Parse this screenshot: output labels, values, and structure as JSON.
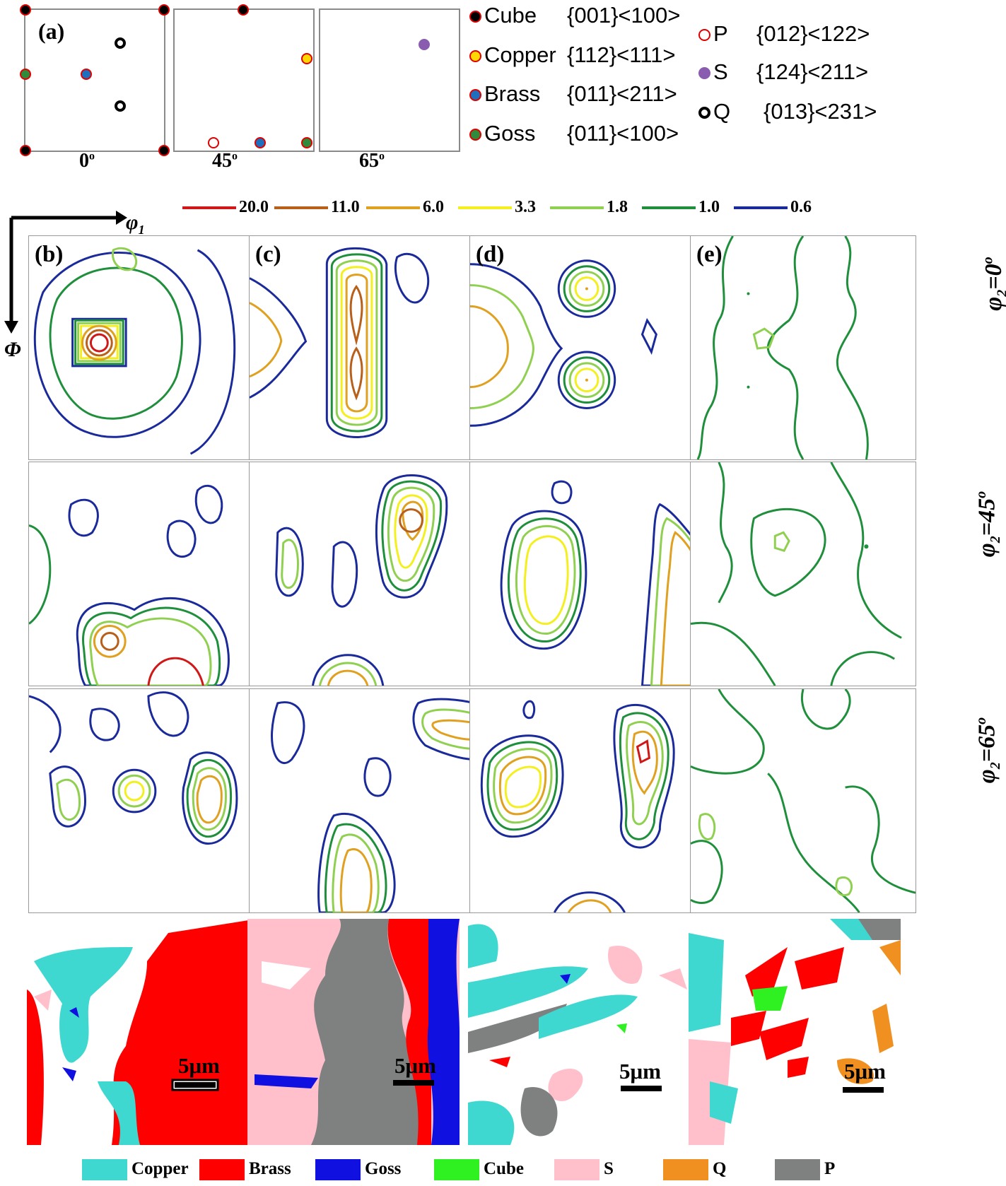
{
  "panel_a": {
    "label": "(a)",
    "angle_labels": [
      "0",
      "45",
      "65"
    ],
    "degree_mark": "o"
  },
  "texture_legend": {
    "left": [
      {
        "name": "Cube",
        "indices": "{001}<100>",
        "fill": "#000000"
      },
      {
        "name": "Copper",
        "indices": "{112}<111>",
        "fill": "#ffd700"
      },
      {
        "name": "Brass",
        "indices": "{011}<211>",
        "fill": "#1f6fbf"
      },
      {
        "name": "Goss",
        "indices": "{011}<100>",
        "fill": "#2e8b3c"
      }
    ],
    "right": [
      {
        "name": "P",
        "indices": "{012}<122>"
      },
      {
        "name": "S",
        "indices": "{124}<211>"
      },
      {
        "name": "Q",
        "indices": "{013}<231>"
      }
    ]
  },
  "contour_levels": [
    {
      "value": "20.0",
      "color": "#d01818"
    },
    {
      "value": "11.0",
      "color": "#b8601a"
    },
    {
      "value": "6.0",
      "color": "#e0a020"
    },
    {
      "value": "3.3",
      "color": "#f4f020"
    },
    {
      "value": "1.8",
      "color": "#90d050"
    },
    {
      "value": "1.0",
      "color": "#1f8f3c"
    },
    {
      "value": "0.6",
      "color": "#1a2a9a"
    }
  ],
  "axes": {
    "phi1": "φ",
    "phi1_sub": "1",
    "Phi": "Φ"
  },
  "panel_labels": [
    "(b)",
    "(c)",
    "(d)",
    "(e)"
  ],
  "row_labels": [
    {
      "prefix": "φ",
      "sub": "2",
      "value": "=0",
      "sup": "o"
    },
    {
      "prefix": "φ",
      "sub": "2",
      "value": "=45",
      "sup": "o"
    },
    {
      "prefix": "φ",
      "sub": "2",
      "value": "=65",
      "sup": "o"
    }
  ],
  "scale_bar": "5μm",
  "bottom_legend": [
    {
      "name": "Copper",
      "color": "#3fd8d0"
    },
    {
      "name": "Brass",
      "color": "#ff0000"
    },
    {
      "name": "Goss",
      "color": "#1010e0"
    },
    {
      "name": "Cube",
      "color": "#2ff020"
    },
    {
      "name": "S",
      "color": "#ffc0cc"
    },
    {
      "name": "Q",
      "color": "#f09020"
    },
    {
      "name": "P",
      "color": "#7f8080"
    }
  ]
}
